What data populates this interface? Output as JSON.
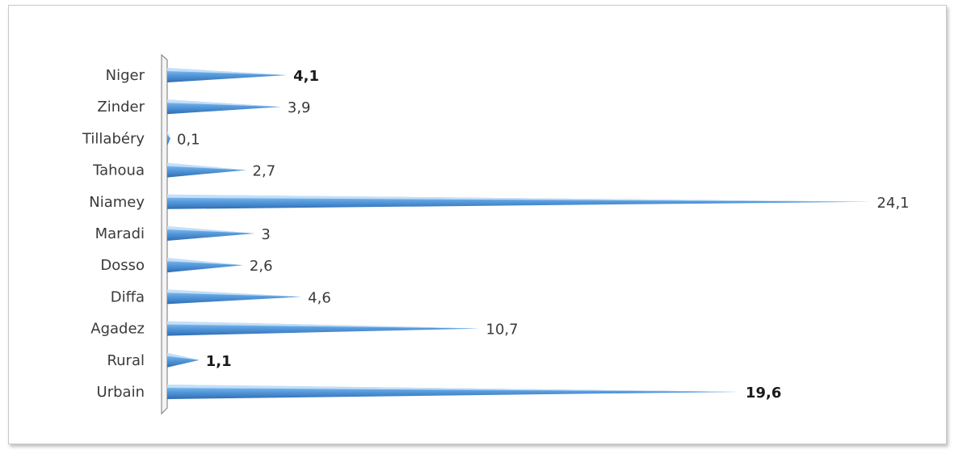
{
  "chart_data": {
    "type": "bar",
    "orientation": "horizontal",
    "categories": [
      "Niger",
      "Zinder",
      "Tillabéry",
      "Tahoua",
      "Niamey",
      "Maradi",
      "Dosso",
      "Diffa",
      "Agadez",
      "Rural",
      "Urbain"
    ],
    "values": [
      4.1,
      3.9,
      0.1,
      2.7,
      24.1,
      3,
      2.6,
      4.6,
      10.7,
      1.1,
      19.6
    ],
    "value_labels": [
      "4,1",
      "3,9",
      "0,1",
      "2,7",
      "24,1",
      "3",
      "2,6",
      "4,6",
      "10,7",
      "1,1",
      "19,6"
    ],
    "bold_labels": [
      true,
      false,
      false,
      false,
      false,
      false,
      false,
      false,
      false,
      true,
      true
    ],
    "xlim": [
      0,
      24.5
    ],
    "grid": false,
    "legend": "none",
    "bar_style": "cone",
    "title": "",
    "xlabel": "",
    "ylabel": "",
    "colors": {
      "bar_top": "#8fc0ef",
      "bar_mid": "#5a9fe0",
      "bar_dark": "#2f6db3",
      "axis": "#8c8c8c"
    }
  }
}
